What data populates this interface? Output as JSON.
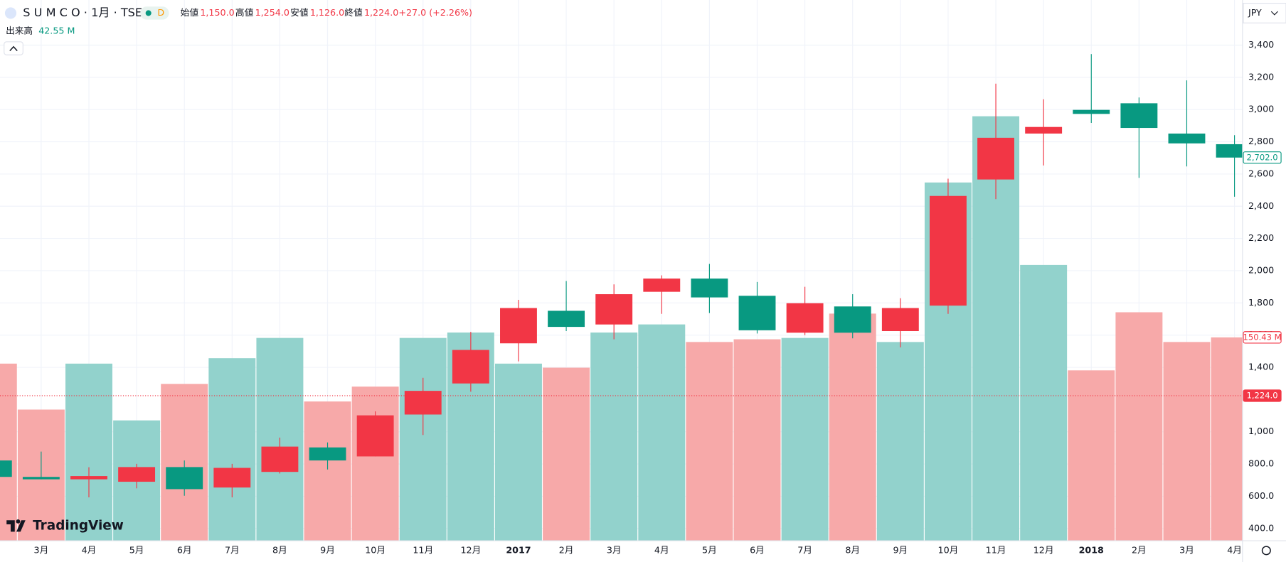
{
  "header": {
    "symbol": "S U M C O · 1月 · TSE",
    "interval": "D",
    "ohlc": [
      {
        "label": "始値",
        "value": "1,150.0"
      },
      {
        "label": "高値",
        "value": "1,254.0"
      },
      {
        "label": "安値",
        "value": "1,126.0"
      },
      {
        "label": "終値",
        "value": "1,224.0"
      }
    ],
    "change": "+27.0 (+2.26%)",
    "volume_label": "出来高",
    "volume_value": "42.55 M",
    "currency": "JPY",
    "logo": "TradingView"
  },
  "chart_data": {
    "type": "candlestick",
    "categories": [
      null,
      "3月",
      "4月",
      "5月",
      "6月",
      "7月",
      "8月",
      "9月",
      "10月",
      "11月",
      "12月",
      "2017",
      "2月",
      "3月",
      "4月",
      "5月",
      "6月",
      "7月",
      "8月",
      "9月",
      "10月",
      "11月",
      "12月",
      "2018",
      "2月",
      "3月",
      "4月"
    ],
    "open": [
      822,
      720,
      705,
      690,
      781,
      654,
      751,
      903,
      847,
      1107,
      1300,
      1549,
      1751,
      1666,
      1869,
      1951,
      1844,
      1615,
      1778,
      1625,
      1783,
      2566,
      2851,
      2998,
      3039,
      2851,
      2785
    ],
    "high": [
      830,
      877,
      780,
      801,
      822,
      801,
      964,
      934,
      1127,
      1335,
      1620,
      1819,
      1936,
      1915,
      1971,
      2042,
      1930,
      1900,
      1854,
      1829,
      2571,
      3161,
      3064,
      3344,
      3075,
      3181,
      2841
    ],
    "low": [
      700,
      705,
      593,
      649,
      603,
      593,
      741,
      766,
      847,
      980,
      1249,
      1437,
      1625,
      1574,
      1732,
      1737,
      1610,
      1600,
      1580,
      1524,
      1732,
      2444,
      2653,
      2917,
      2576,
      2647,
      2459
    ],
    "close": [
      720,
      705,
      725,
      781,
      644,
      776,
      908,
      822,
      1102,
      1254,
      1508,
      1768,
      1651,
      1854,
      1951,
      1834,
      1630,
      1798,
      1615,
      1768,
      2464,
      2825,
      2892,
      2973,
      2886,
      2790,
      2702
    ],
    "up_color": "#f23645",
    "down_color": "#089981",
    "ylim": [
      324,
      3680
    ],
    "yticks": [
      {
        "value": 400,
        "label": "400.0"
      },
      {
        "value": 600,
        "label": "600.0"
      },
      {
        "value": 800,
        "label": "800.0"
      },
      {
        "value": 1000,
        "label": "1,000"
      },
      {
        "value": 1400,
        "label": "1,400"
      },
      {
        "value": 1600,
        "label": "1,600"
      },
      {
        "value": 1800,
        "label": "1,800"
      },
      {
        "value": 2000,
        "label": "2,000"
      },
      {
        "value": 2200,
        "label": "2,200"
      },
      {
        "value": 2400,
        "label": "2,400"
      },
      {
        "value": 2600,
        "label": "2,600"
      },
      {
        "value": 2800,
        "label": "2,800"
      },
      {
        "value": 3000,
        "label": "3,000"
      },
      {
        "value": 3200,
        "label": "3,200"
      },
      {
        "value": 3400,
        "label": "3,400"
      }
    ],
    "grid": true,
    "last_price": {
      "value": 2702,
      "label": "2,702.0"
    },
    "crosshair": {
      "value": 1224,
      "label": "1,224.0"
    },
    "volume": {
      "values": [
        131,
        97,
        131,
        89,
        116,
        135,
        150,
        103,
        114,
        150,
        154,
        131,
        128,
        154,
        160,
        147,
        149,
        150,
        168,
        147,
        265,
        314,
        204,
        126,
        169,
        147,
        150.43
      ],
      "colors": [
        "#f7a9a9",
        "#f7a9a9",
        "#92d2cc",
        "#92d2cc",
        "#f7a9a9",
        "#92d2cc",
        "#92d2cc",
        "#f7a9a9",
        "#f7a9a9",
        "#92d2cc",
        "#92d2cc",
        "#92d2cc",
        "#f7a9a9",
        "#92d2cc",
        "#92d2cc",
        "#f7a9a9",
        "#f7a9a9",
        "#92d2cc",
        "#f7a9a9",
        "#92d2cc",
        "#92d2cc",
        "#92d2cc",
        "#92d2cc",
        "#f7a9a9",
        "#f7a9a9",
        "#f7a9a9",
        "#f7a9a9"
      ],
      "lim": [
        0,
        400
      ],
      "last_label": "150.43 M"
    }
  }
}
